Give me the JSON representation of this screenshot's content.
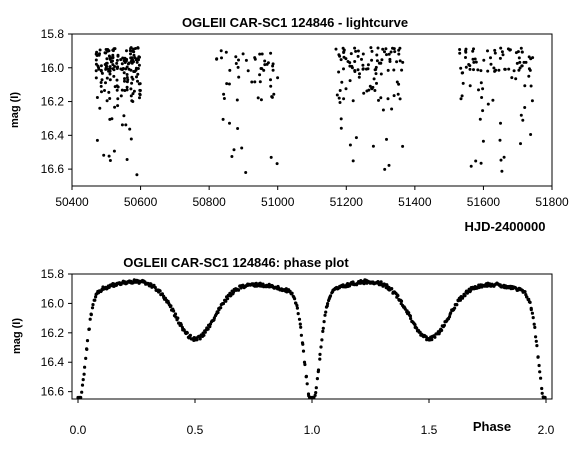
{
  "chart_data": [
    {
      "type": "scatter",
      "title": "OGLEII CAR-SC1 124846 - lightcurve",
      "xlabel": "HJD-2400000",
      "ylabel": "mag (I)",
      "xlim": [
        50400,
        51800
      ],
      "ylim": [
        15.8,
        16.7
      ],
      "y_inverted": true,
      "grid": false,
      "legend": "none",
      "x_tick_labels": [
        "50400",
        "50600",
        "50800",
        "51000",
        "51200",
        "51400",
        "51600",
        "51800"
      ],
      "y_tick_labels": [
        "15.8",
        "16.0",
        "16.2",
        "16.4",
        "16.6"
      ],
      "marker": "dot",
      "seasons": [
        {
          "x_range": [
            50470,
            50600
          ],
          "y_range": [
            15.88,
            16.65
          ],
          "approx_points": 180
        },
        {
          "x_range": [
            50820,
            51000
          ],
          "y_range": [
            15.88,
            16.62
          ],
          "approx_points": 55
        },
        {
          "x_range": [
            51170,
            51370
          ],
          "y_range": [
            15.87,
            16.65
          ],
          "approx_points": 110
        },
        {
          "x_range": [
            51530,
            51750
          ],
          "y_range": [
            15.85,
            16.65
          ],
          "approx_points": 95
        }
      ]
    },
    {
      "type": "scatter",
      "title": "OGLEII CAR-SC1 124846: phase plot",
      "xlabel": "Phase",
      "ylabel": "mag (I)",
      "xlim": [
        0.0,
        2.0
      ],
      "ylim": [
        15.8,
        16.65
      ],
      "y_inverted": true,
      "grid": false,
      "legend": "none",
      "x_tick_labels": [
        "0.0",
        "0.5",
        "1.0",
        "1.5",
        "2.0"
      ],
      "y_tick_labels": [
        "15.8",
        "16.0",
        "16.2",
        "16.4",
        "16.6"
      ],
      "marker": "dot",
      "curve_shape": "eclipsing binary, two cycles",
      "key_points": [
        {
          "phase": 0.0,
          "mag": 16.62
        },
        {
          "phase": 0.25,
          "mag": 15.86
        },
        {
          "phase": 0.5,
          "mag": 16.17
        },
        {
          "phase": 0.75,
          "mag": 15.89
        },
        {
          "phase": 1.0,
          "mag": 16.62
        },
        {
          "phase": 1.25,
          "mag": 15.86
        },
        {
          "phase": 1.5,
          "mag": 16.17
        },
        {
          "phase": 1.75,
          "mag": 15.89
        },
        {
          "phase": 2.0,
          "mag": 16.62
        }
      ]
    }
  ]
}
